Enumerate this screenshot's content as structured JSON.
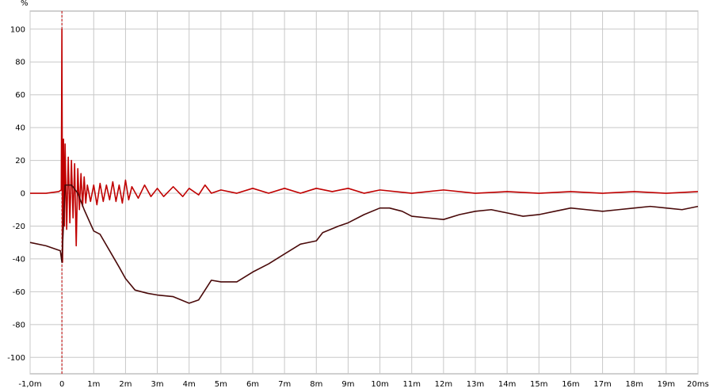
{
  "chart_data": {
    "type": "line",
    "y_label": "%",
    "xlim": [
      -1,
      20
    ],
    "ylim": [
      -110,
      111
    ],
    "grid": true,
    "xticks": [
      {
        "value": -1,
        "label": "-1,0m"
      },
      0,
      {
        "value": 1,
        "label": "1m"
      },
      {
        "value": 2,
        "label": "2m"
      },
      {
        "value": 3,
        "label": "3m"
      },
      {
        "value": 4,
        "label": "4m"
      },
      {
        "value": 5,
        "label": "5m"
      },
      {
        "value": 6,
        "label": "6m"
      },
      {
        "value": 7,
        "label": "7m"
      },
      {
        "value": 8,
        "label": "8m"
      },
      {
        "value": 9,
        "label": "9m"
      },
      {
        "value": 10,
        "label": "10m"
      },
      {
        "value": 11,
        "label": "11m"
      },
      {
        "value": 12,
        "label": "12m"
      },
      {
        "value": 13,
        "label": "13m"
      },
      {
        "value": 14,
        "label": "14m"
      },
      {
        "value": 15,
        "label": "15m"
      },
      {
        "value": 16,
        "label": "16m"
      },
      {
        "value": 17,
        "label": "17m"
      },
      {
        "value": 18,
        "label": "18m"
      },
      {
        "value": 19,
        "label": "19m"
      },
      {
        "value": 20,
        "label": "20ms"
      }
    ],
    "yticks": [
      -100,
      -80,
      -60,
      -40,
      -20,
      0,
      20,
      40,
      60,
      80,
      100
    ],
    "series": [
      {
        "color": "#c00000",
        "x": [
          -1,
          -0.5,
          -0.1,
          -0.02,
          0,
          0.02,
          0.05,
          0.08,
          0.1,
          0.15,
          0.2,
          0.25,
          0.3,
          0.35,
          0.4,
          0.45,
          0.5,
          0.55,
          0.6,
          0.65,
          0.7,
          0.75,
          0.8,
          0.9,
          1.0,
          1.1,
          1.2,
          1.3,
          1.4,
          1.5,
          1.6,
          1.7,
          1.8,
          1.9,
          2.0,
          2.1,
          2.2,
          2.4,
          2.6,
          2.8,
          3.0,
          3.2,
          3.5,
          3.8,
          4.0,
          4.3,
          4.5,
          4.7,
          5.0,
          5.5,
          6.0,
          6.5,
          7.0,
          7.5,
          8.0,
          8.5,
          9.0,
          9.5,
          10,
          11,
          12,
          13,
          14,
          15,
          16,
          17,
          18,
          19,
          20
        ],
        "values": [
          0,
          0,
          1,
          2,
          100,
          -42,
          33,
          -20,
          30,
          -22,
          22,
          -18,
          20,
          -15,
          18,
          -32,
          15,
          -10,
          12,
          -8,
          10,
          -6,
          5,
          -5,
          5,
          -7,
          6,
          -5,
          5,
          -4,
          7,
          -5,
          5,
          -6,
          8,
          -4,
          4,
          -3,
          5,
          -2,
          3,
          -2,
          4,
          -2,
          3,
          -1,
          5,
          0,
          2,
          0,
          3,
          0,
          3,
          0,
          3,
          1,
          3,
          0,
          2,
          0,
          2,
          0,
          1,
          0,
          1,
          0,
          1,
          0,
          1
        ]
      },
      {
        "color": "#4a0a0a",
        "x": [
          -1,
          -0.5,
          -0.05,
          0,
          0.1,
          0.3,
          0.5,
          0.7,
          1.0,
          1.2,
          1.5,
          1.8,
          2.0,
          2.3,
          2.7,
          3.0,
          3.5,
          4.0,
          4.3,
          4.7,
          5.0,
          5.5,
          6.0,
          6.5,
          7.0,
          7.5,
          8.0,
          8.2,
          8.7,
          9.0,
          9.5,
          10.0,
          10.3,
          10.7,
          11.0,
          11.5,
          12.0,
          12.5,
          13.0,
          13.5,
          14.0,
          14.5,
          15.0,
          15.5,
          16.0,
          16.5,
          17.0,
          17.5,
          18.0,
          18.5,
          19.0,
          19.5,
          20
        ],
        "values": [
          -30,
          -32,
          -35,
          -42,
          5,
          5,
          0,
          -10,
          -23,
          -25,
          -35,
          -45,
          -52,
          -59,
          -61,
          -62,
          -63,
          -67,
          -65,
          -53,
          -54,
          -54,
          -48,
          -43,
          -37,
          -31,
          -29,
          -24,
          -20,
          -18,
          -13,
          -9,
          -9,
          -11,
          -14,
          -15,
          -16,
          -13,
          -11,
          -10,
          -12,
          -14,
          -13,
          -11,
          -9,
          -10,
          -11,
          -10,
          -9,
          -8,
          -9,
          -10,
          -8
        ]
      }
    ]
  }
}
